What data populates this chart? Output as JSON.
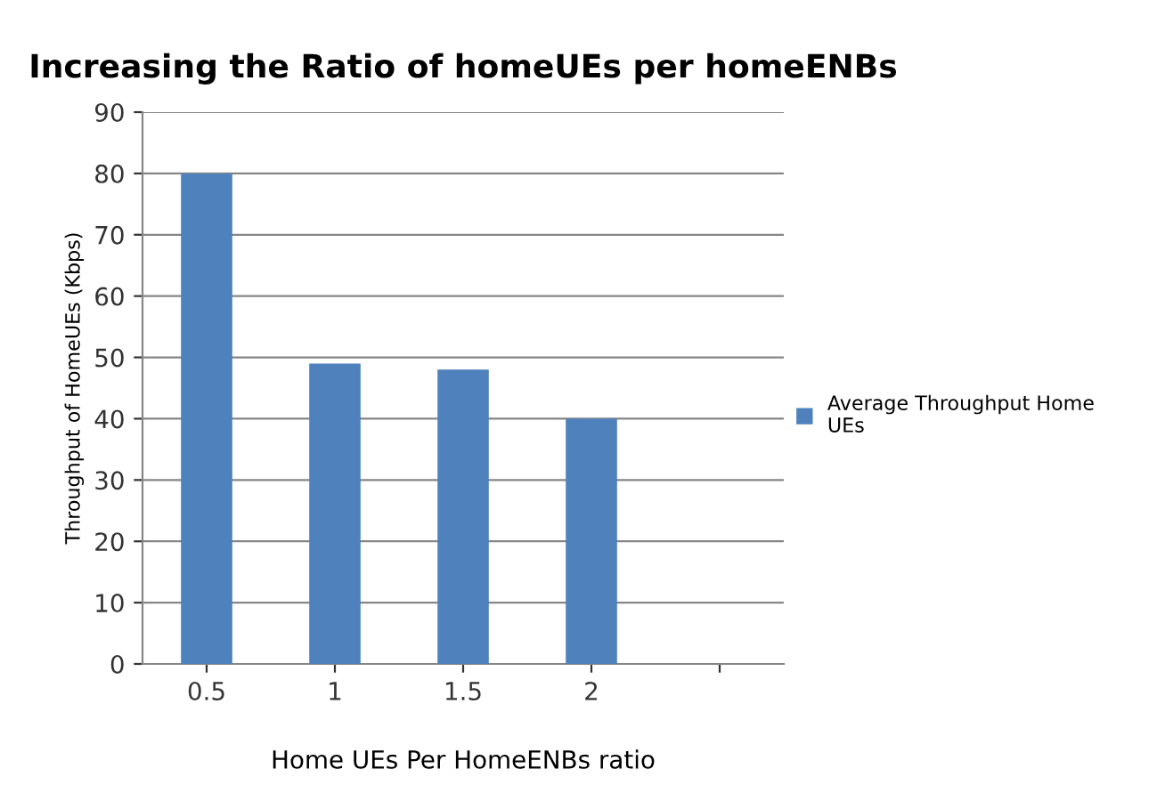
{
  "chart_data": {
    "type": "bar",
    "title": "Increasing the Ratio of homeUEs per homeENBs",
    "xlabel": "Home UEs Per HomeENBs ratio",
    "ylabel": "Throughput of HomeUEs (Kbps)",
    "categories": [
      "0.5",
      "1",
      "1.5",
      "2",
      null
    ],
    "series": [
      {
        "name": "Average Throughput Home UEs",
        "color": "#4f81bd",
        "values": [
          80,
          49,
          48,
          40,
          null
        ]
      }
    ],
    "ylim": [
      0,
      90
    ],
    "yticks": [
      0,
      10,
      20,
      30,
      40,
      50,
      60,
      70,
      80,
      90
    ],
    "grid": "y",
    "legend": "right"
  }
}
